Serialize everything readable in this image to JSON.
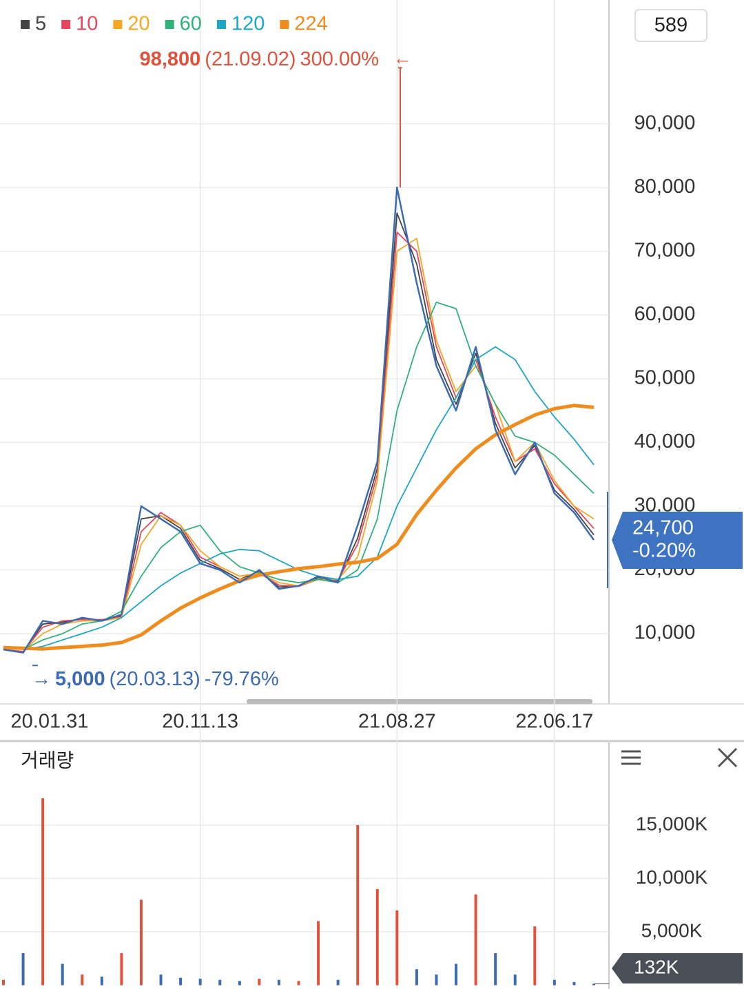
{
  "chart_data": [
    {
      "type": "line",
      "badge": 589,
      "categories": [
        null,
        null,
        "20.01.31",
        null,
        null,
        null,
        null,
        null,
        null,
        null,
        "20.11.13",
        null,
        null,
        null,
        null,
        null,
        null,
        null,
        null,
        null,
        "21.08.27",
        null,
        null,
        null,
        null,
        null,
        null,
        null,
        "22.06.17",
        null,
        null
      ],
      "values": [
        7500,
        7000,
        12000,
        11500,
        12500,
        12000,
        13000,
        30000,
        28000,
        26000,
        21000,
        20000,
        18000,
        20000,
        17000,
        17500,
        19000,
        18000,
        27000,
        37000,
        80000,
        65000,
        52000,
        45000,
        55000,
        42000,
        35000,
        40000,
        32000,
        29000,
        24700
      ],
      "color": "#3d6ab3",
      "series": [
        {
          "name": "5",
          "color": "#444444",
          "values": [
            7500,
            7100,
            11500,
            11800,
            12300,
            12100,
            12800,
            28000,
            28500,
            26500,
            21500,
            20200,
            18500,
            19800,
            17300,
            17500,
            18800,
            18200,
            25000,
            36000,
            76000,
            68000,
            53000,
            46000,
            54000,
            43000,
            36000,
            39500,
            32500,
            29500,
            25500
          ]
        },
        {
          "name": "10",
          "color": "#e8465d",
          "values": [
            7500,
            7200,
            11000,
            12000,
            12200,
            12200,
            12600,
            26000,
            29000,
            27000,
            22000,
            20500,
            19000,
            19500,
            17600,
            17400,
            18500,
            18400,
            24000,
            35000,
            73000,
            70000,
            55000,
            47000,
            53000,
            44000,
            37000,
            39000,
            33500,
            30000,
            26500
          ]
        },
        {
          "name": "20",
          "color": "#f5a623",
          "values": [
            null,
            7300,
            10000,
            11500,
            12000,
            12000,
            12500,
            24000,
            28500,
            27000,
            23000,
            20500,
            19000,
            19500,
            18000,
            17500,
            18500,
            18500,
            22000,
            34000,
            70000,
            72000,
            56000,
            48000,
            52000,
            46000,
            37000,
            40000,
            34000,
            30000,
            28000
          ]
        },
        {
          "name": "60",
          "color": "#2db37a",
          "values": [
            null,
            7500,
            9000,
            10000,
            11500,
            12000,
            13500,
            19000,
            23500,
            26000,
            27000,
            23000,
            20500,
            19500,
            18500,
            18000,
            18500,
            18000,
            20000,
            28000,
            45000,
            55000,
            62000,
            61000,
            52000,
            46000,
            41000,
            40000,
            38000,
            35000,
            32000
          ]
        },
        {
          "name": "120",
          "color": "#1aa7c8",
          "values": [
            null,
            7500,
            8000,
            9000,
            10000,
            11000,
            12500,
            15000,
            17500,
            19500,
            21000,
            22500,
            23200,
            23000,
            21500,
            20000,
            19000,
            18500,
            19000,
            22000,
            30000,
            36000,
            42000,
            47000,
            53000,
            55000,
            53000,
            48000,
            44000,
            40500,
            36500
          ]
        },
        {
          "name": "224",
          "color": "#f08c1c",
          "values": [
            7800,
            7700,
            7600,
            7800,
            8000,
            8200,
            8600,
            9800,
            12000,
            14000,
            15600,
            17000,
            18300,
            19200,
            19700,
            20200,
            20500,
            20900,
            21200,
            21800,
            24000,
            28700,
            32500,
            36000,
            39000,
            41200,
            42800,
            44300,
            45300,
            45800,
            45500
          ]
        }
      ],
      "ylim": [
        0,
        109000
      ],
      "yticks": [
        {
          "value": 10000,
          "label": "10,000"
        },
        {
          "value": 20000,
          "label": "20,000"
        },
        {
          "value": 30000,
          "label": "30,000"
        },
        {
          "value": 40000,
          "label": "40,000"
        },
        {
          "value": 50000,
          "label": "50,000"
        },
        {
          "value": 60000,
          "label": "60,000"
        },
        {
          "value": 70000,
          "label": "70,000"
        },
        {
          "value": 80000,
          "label": "80,000"
        },
        {
          "value": 90000,
          "label": "90,000"
        }
      ],
      "grid": true,
      "high": {
        "value": 98800,
        "label": "98,800",
        "date": "(21.09.02)",
        "change": "300.00%"
      },
      "low": {
        "value": 5000,
        "label": "5,000",
        "date": "(20.03.13)",
        "change": "-79.76%"
      },
      "last": {
        "value": 24700,
        "label": "24,700",
        "change": "-0.20%"
      }
    },
    {
      "type": "bar",
      "title": "거래량",
      "values": [
        500000,
        3000000,
        17500000,
        2000000,
        1000000,
        800000,
        3000000,
        8000000,
        1000000,
        700000,
        600000,
        500000,
        400000,
        600000,
        500000,
        400000,
        6000000,
        500000,
        15000000,
        9000000,
        7000000,
        1500000,
        1000000,
        2000000,
        8500000,
        3000000,
        1000000,
        5500000,
        500000,
        300000,
        132000
      ],
      "up_color": "#e0533a",
      "down_color": "#3d6ab3",
      "ylim": [
        0,
        22600000
      ],
      "yticks": [
        {
          "value": 5000000,
          "label": "5,000K"
        },
        {
          "value": 10000000,
          "label": "10,000K"
        },
        {
          "value": 15000000,
          "label": "15,000K"
        }
      ],
      "grid": true,
      "last": {
        "value": 132000,
        "label": "132K"
      }
    }
  ]
}
